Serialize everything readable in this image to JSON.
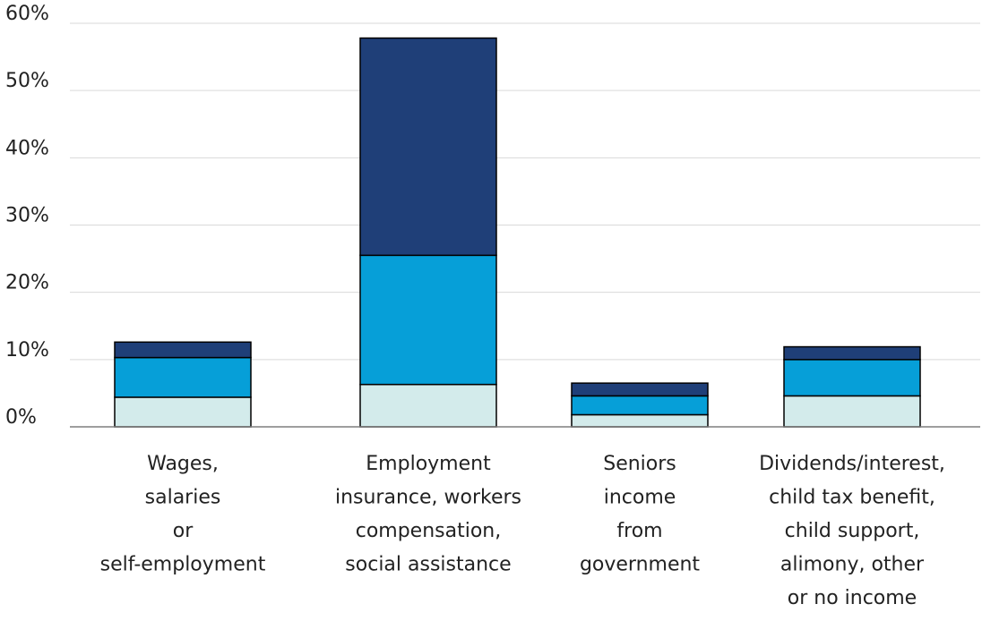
{
  "chart_data": {
    "type": "bar",
    "stacked": true,
    "categories": [
      [
        "Wages,",
        "salaries",
        "or",
        "self-employment"
      ],
      [
        "Employment",
        "insurance, workers",
        "compensation,",
        "social assistance"
      ],
      [
        "Seniors",
        "income",
        "from",
        "government"
      ],
      [
        "Dividends/interest,",
        "child tax benefit,",
        "child support,",
        "alimony, other",
        "or no income"
      ]
    ],
    "series": [
      {
        "color": "#d3ebeb",
        "values": [
          4.4,
          6.3,
          1.8,
          4.6
        ]
      },
      {
        "color": "#069fd8",
        "values": [
          5.9,
          19.2,
          2.8,
          5.4
        ]
      },
      {
        "color": "#1f3f78",
        "values": [
          2.3,
          32.3,
          1.9,
          1.9
        ]
      }
    ],
    "ylim": [
      0,
      60
    ],
    "yticks": [
      0,
      10,
      20,
      30,
      40,
      50,
      60
    ],
    "ytick_labels": [
      "0%",
      "10%",
      "20%",
      "30%",
      "40%",
      "50%",
      "60%"
    ],
    "grid": true,
    "legend": "none",
    "xlabel": "",
    "ylabel": "",
    "title": ""
  }
}
